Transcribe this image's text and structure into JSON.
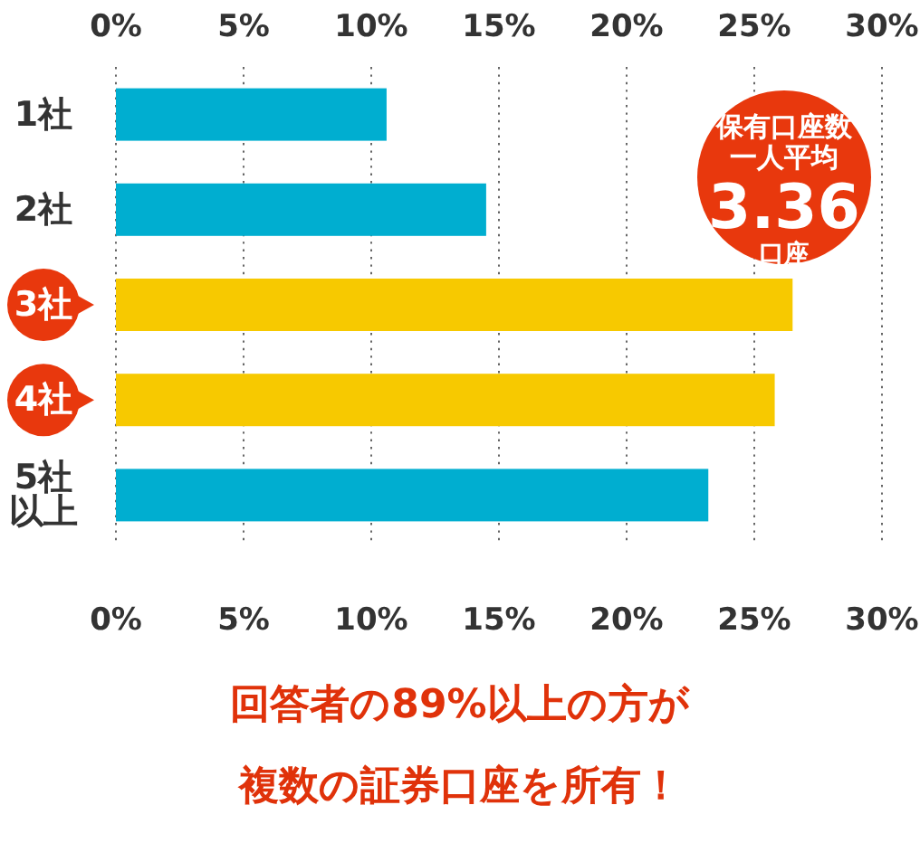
{
  "chart_data": {
    "type": "bar",
    "orientation": "horizontal",
    "categories": [
      "1社",
      "2社",
      "3社",
      "4社",
      "5社以上"
    ],
    "values": [
      10.6,
      14.5,
      26.5,
      25.8,
      23.2
    ],
    "colors": [
      "#00aed0",
      "#00aed0",
      "#f7c900",
      "#f7c900",
      "#00aed0"
    ],
    "xlim": [
      0,
      30
    ],
    "xticks": [
      {
        "value": 0,
        "label": "0%"
      },
      {
        "value": 5,
        "label": "5%"
      },
      {
        "value": 10,
        "label": "10%"
      },
      {
        "value": 15,
        "label": "15%"
      },
      {
        "value": 20,
        "label": "20%"
      },
      {
        "value": 25,
        "label": "25%"
      },
      {
        "value": 30,
        "label": "30%"
      }
    ],
    "x2lim": [
      0,
      30
    ],
    "x2ticks": [
      {
        "value": 0,
        "label": "0%"
      },
      {
        "value": 5,
        "label": "5%"
      },
      {
        "value": 10,
        "label": "10%"
      },
      {
        "value": 15,
        "label": "15%"
      },
      {
        "value": 20,
        "label": "20%"
      },
      {
        "value": 25,
        "label": "25%"
      },
      {
        "value": 30,
        "label": "30%"
      }
    ],
    "grid": "x",
    "annotations": [
      "保有口座数",
      "一人平均",
      "3.36",
      "口座",
      "回答者の89%以上の方が",
      "複数の証券口座を所有！"
    ]
  }
}
